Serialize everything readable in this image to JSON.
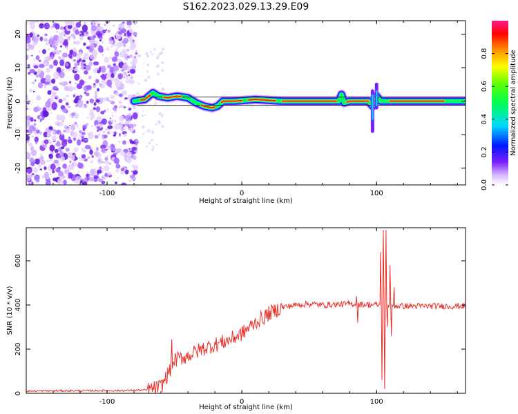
{
  "title": "S162.2023.029.13.29.E09",
  "chart_data": [
    {
      "type": "heatmap",
      "title": "",
      "xlabel": "Height of straight line (km)",
      "ylabel": "Frequency (Hz)",
      "xlim": [
        -160,
        166
      ],
      "ylim": [
        -25,
        24
      ],
      "xticks": [
        -100,
        0,
        100
      ],
      "xticklabels": [
        "-100",
        "0",
        "100"
      ],
      "yticks": [
        -20,
        -10,
        0,
        10,
        20
      ],
      "yticklabels": [
        "-20",
        "-10",
        "0",
        "10",
        "20"
      ],
      "noise_region_x": [
        -160,
        -78
      ],
      "ridge": {
        "x": [
          -80,
          -72,
          -66,
          -62,
          -55,
          -48,
          -40,
          -34,
          -28,
          -22,
          -18,
          -14,
          -5,
          10,
          30,
          60,
          72,
          74,
          76,
          80,
          94,
          97,
          100,
          103,
          108,
          130,
          160,
          166
        ],
        "frequency": [
          0,
          0.5,
          2.5,
          1.5,
          1.0,
          1.5,
          1.0,
          -0.5,
          -1.5,
          -2.0,
          -1.5,
          0,
          0,
          0.5,
          0,
          0,
          0,
          2.0,
          -0.5,
          0,
          0,
          -1.5,
          1.5,
          0,
          0,
          0,
          0,
          0
        ],
        "peak_amplitude": 0.95
      },
      "colorbar": {
        "label": "Normalized spectral amplitude",
        "range": [
          0,
          1
        ],
        "ticks": [
          0,
          0.2,
          0.4,
          0.6,
          0.8
        ],
        "ticklabels": [
          "0.0",
          "0.2",
          "0.4",
          "0.6",
          "0.8"
        ],
        "colormap": "rainbow"
      }
    },
    {
      "type": "line",
      "title": "",
      "xlabel": "Height of straight line (km)",
      "ylabel": "SNR (10 * v/v)",
      "xlim": [
        -160,
        166
      ],
      "ylim": [
        0,
        750
      ],
      "xticks": [
        -100,
        0,
        100
      ],
      "xticklabels": [
        "-100",
        "0",
        "100"
      ],
      "yticks": [
        0,
        200,
        400,
        600
      ],
      "yticklabels": [
        "0",
        "200",
        "400",
        "600"
      ],
      "color": "#e8302a",
      "series_trend": {
        "x": [
          -160,
          -120,
          -90,
          -70,
          -60,
          -52,
          -50,
          -40,
          -30,
          -20,
          -10,
          0,
          10,
          20,
          30,
          40,
          50,
          60,
          80,
          100,
          120,
          140,
          166
        ],
        "y": [
          10,
          12,
          12,
          15,
          30,
          120,
          150,
          170,
          200,
          220,
          240,
          270,
          320,
          360,
          390,
          400,
          405,
          400,
          405,
          400,
          395,
          395,
          395
        ]
      },
      "spikes": [
        {
          "x": -52,
          "y": 245
        },
        {
          "x": 85,
          "y": 440
        },
        {
          "x": 86,
          "y": 320
        },
        {
          "x": 103,
          "y": 640
        },
        {
          "x": 104,
          "y": 60
        },
        {
          "x": 105,
          "y": 740
        },
        {
          "x": 106,
          "y": 20
        },
        {
          "x": 107,
          "y": 740
        },
        {
          "x": 108,
          "y": 300
        },
        {
          "x": 110,
          "y": 580
        },
        {
          "x": 111,
          "y": 260
        },
        {
          "x": 113,
          "y": 480
        }
      ]
    }
  ]
}
